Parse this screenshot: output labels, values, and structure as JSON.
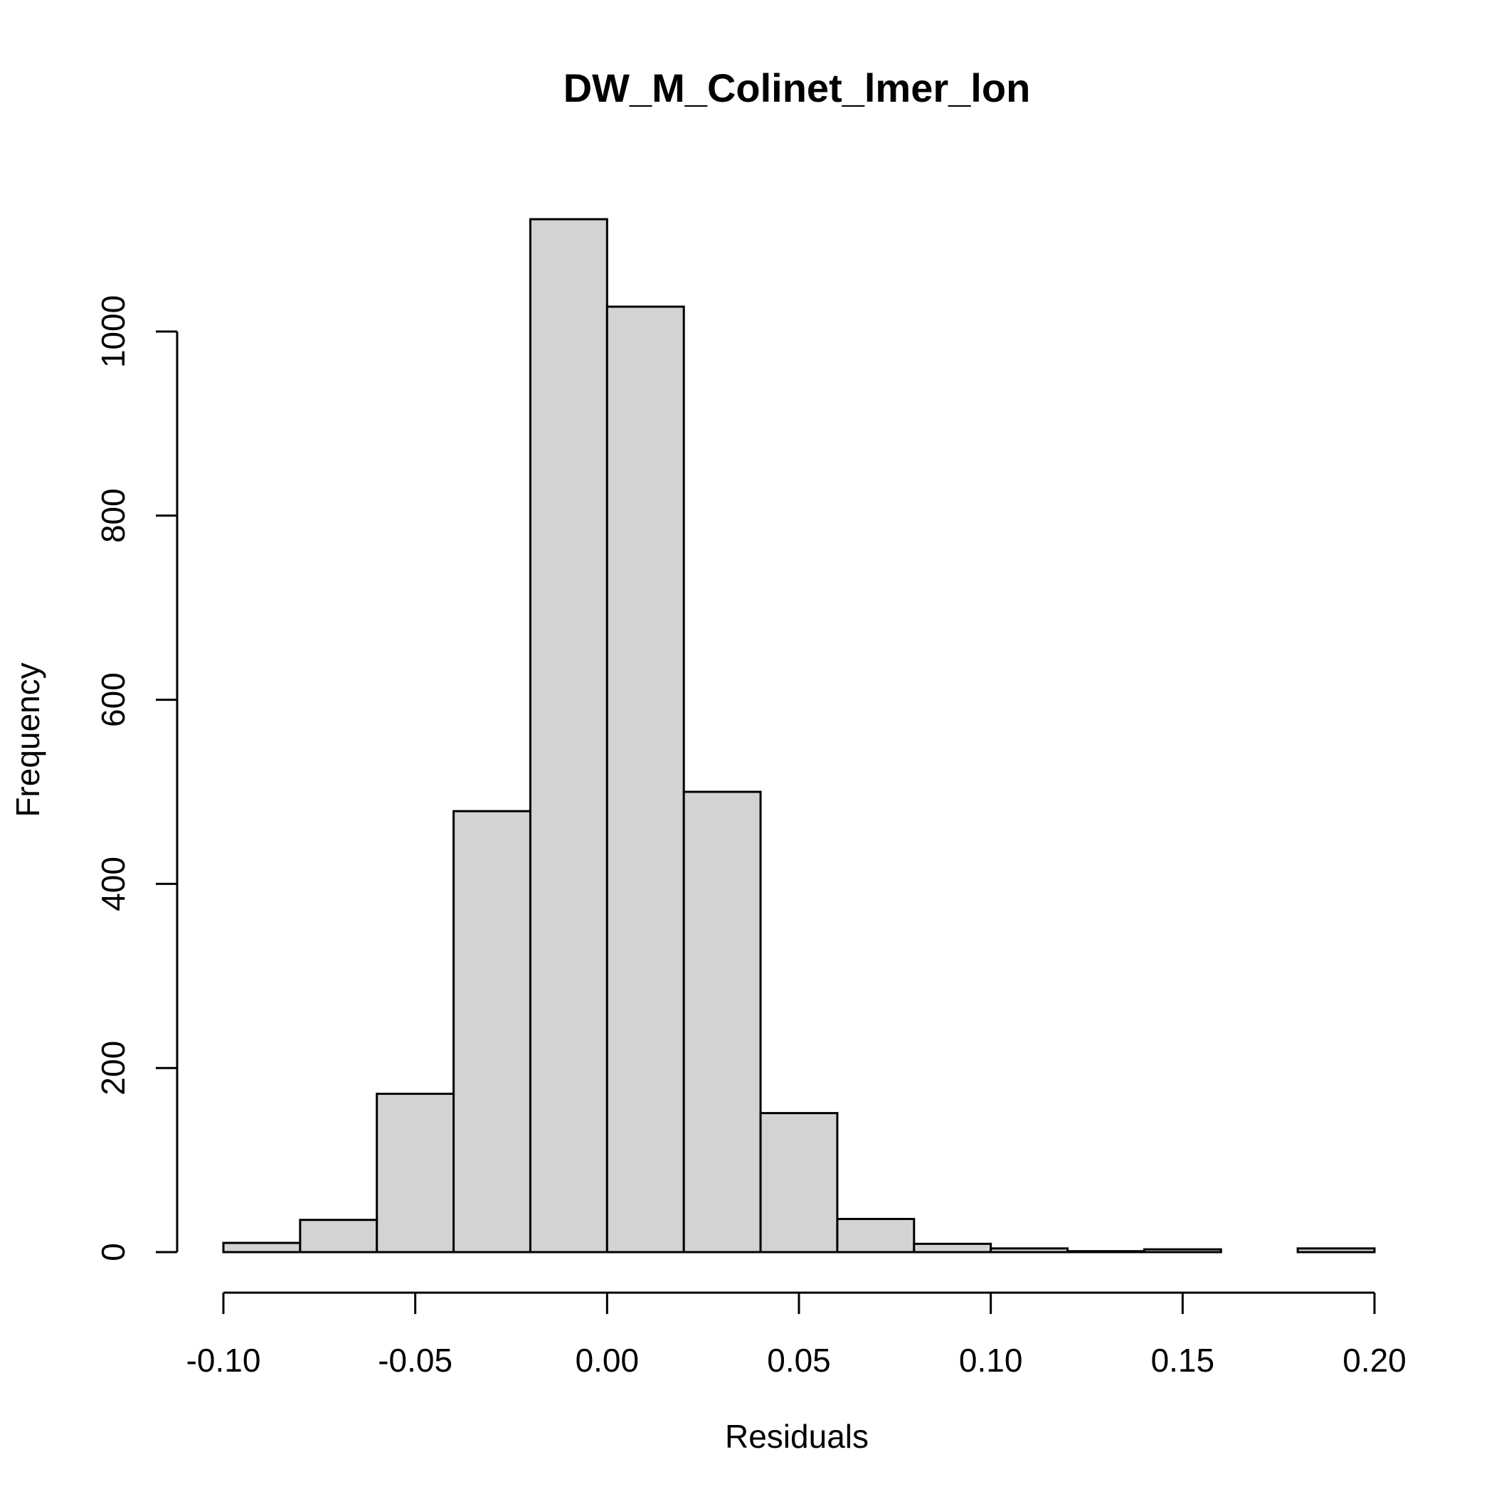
{
  "chart_data": {
    "type": "bar",
    "title": "DW_M_Colinet_lmer_lon",
    "xlabel": "Residuals",
    "ylabel": "Frequency",
    "xlim": [
      -0.1,
      0.2
    ],
    "ylim": [
      0,
      1120
    ],
    "x_ticks": [
      -0.1,
      -0.05,
      0.0,
      0.05,
      0.1,
      0.15,
      0.2
    ],
    "x_tick_labels": [
      "-0.10",
      "-0.05",
      "0.00",
      "0.05",
      "0.10",
      "0.15",
      "0.20"
    ],
    "y_ticks": [
      0,
      200,
      400,
      600,
      800,
      1000
    ],
    "y_tick_labels": [
      "0",
      "200",
      "400",
      "600",
      "800",
      "1000"
    ],
    "bins": [
      {
        "x0": -0.1,
        "x1": -0.08,
        "count": 10
      },
      {
        "x0": -0.08,
        "x1": -0.06,
        "count": 35
      },
      {
        "x0": -0.06,
        "x1": -0.04,
        "count": 172
      },
      {
        "x0": -0.04,
        "x1": -0.02,
        "count": 479
      },
      {
        "x0": -0.02,
        "x1": 0.0,
        "count": 1122
      },
      {
        "x0": 0.0,
        "x1": 0.02,
        "count": 1027
      },
      {
        "x0": 0.02,
        "x1": 0.04,
        "count": 500
      },
      {
        "x0": 0.04,
        "x1": 0.06,
        "count": 151
      },
      {
        "x0": 0.06,
        "x1": 0.08,
        "count": 36
      },
      {
        "x0": 0.08,
        "x1": 0.1,
        "count": 9
      },
      {
        "x0": 0.1,
        "x1": 0.12,
        "count": 4
      },
      {
        "x0": 0.12,
        "x1": 0.14,
        "count": 1
      },
      {
        "x0": 0.14,
        "x1": 0.16,
        "count": 3
      },
      {
        "x0": 0.16,
        "x1": 0.18,
        "count": 0
      },
      {
        "x0": 0.18,
        "x1": 0.2,
        "count": 4
      }
    ],
    "colors": {
      "bar_fill": "#d3d3d3",
      "bar_stroke": "#000000"
    }
  }
}
